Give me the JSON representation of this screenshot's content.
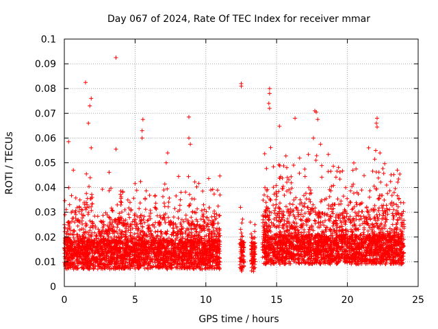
{
  "chart_data": {
    "type": "scatter",
    "title": "Day 067 of 2024, Rate Of TEC Index for receiver mmar",
    "xlabel": "GPS time / hours",
    "ylabel": "ROTI / TECUs",
    "xlim": [
      0,
      25
    ],
    "ylim": [
      0,
      0.1
    ],
    "x_ticks": [
      "0",
      "5",
      "10",
      "15",
      "20",
      "25"
    ],
    "y_ticks": [
      "0",
      "0.01",
      "0.02",
      "0.03",
      "0.04",
      "0.05",
      "0.06",
      "0.07",
      "0.08",
      "0.09",
      "0.1"
    ],
    "grid": true,
    "marker": "+",
    "color": "#ff0000",
    "data_segments": [
      {
        "x_start": 0.0,
        "x_end": 11.0,
        "y_base": 0.013,
        "y_spread": 0.02
      },
      {
        "x_start": 12.4,
        "x_end": 12.7,
        "y_base": 0.012,
        "y_spread": 0.008
      },
      {
        "x_start": 13.2,
        "x_end": 13.5,
        "y_base": 0.012,
        "y_spread": 0.01
      },
      {
        "x_start": 14.0,
        "x_end": 24.0,
        "y_base": 0.015,
        "y_spread": 0.025
      }
    ],
    "outliers": [
      {
        "x": 3.65,
        "y": 0.0925
      },
      {
        "x": 1.5,
        "y": 0.0825
      },
      {
        "x": 12.5,
        "y": 0.082
      },
      {
        "x": 12.5,
        "y": 0.081
      },
      {
        "x": 14.5,
        "y": 0.08
      },
      {
        "x": 14.5,
        "y": 0.078
      },
      {
        "x": 14.45,
        "y": 0.074
      },
      {
        "x": 14.5,
        "y": 0.072
      },
      {
        "x": 1.9,
        "y": 0.076
      },
      {
        "x": 1.8,
        "y": 0.073
      },
      {
        "x": 1.7,
        "y": 0.066
      },
      {
        "x": 17.7,
        "y": 0.071
      },
      {
        "x": 17.8,
        "y": 0.0705
      },
      {
        "x": 22.1,
        "y": 0.068
      },
      {
        "x": 22.05,
        "y": 0.066
      },
      {
        "x": 22.1,
        "y": 0.0645
      },
      {
        "x": 16.3,
        "y": 0.068
      },
      {
        "x": 17.9,
        "y": 0.0675
      },
      {
        "x": 5.55,
        "y": 0.0675
      },
      {
        "x": 5.5,
        "y": 0.063
      },
      {
        "x": 8.8,
        "y": 0.0685
      },
      {
        "x": 15.2,
        "y": 0.0648
      },
      {
        "x": 0.3,
        "y": 0.0585
      },
      {
        "x": 5.5,
        "y": 0.06
      },
      {
        "x": 8.8,
        "y": 0.06
      },
      {
        "x": 8.9,
        "y": 0.0575
      },
      {
        "x": 17.6,
        "y": 0.06
      },
      {
        "x": 18.1,
        "y": 0.0575
      },
      {
        "x": 21.5,
        "y": 0.056
      },
      {
        "x": 22.0,
        "y": 0.055
      },
      {
        "x": 22.3,
        "y": 0.054
      },
      {
        "x": 3.65,
        "y": 0.0555
      },
      {
        "x": 1.9,
        "y": 0.056
      },
      {
        "x": 7.3,
        "y": 0.054
      },
      {
        "x": 7.2,
        "y": 0.05
      },
      {
        "x": 11.0,
        "y": 0.037
      },
      {
        "x": 12.45,
        "y": 0.032
      },
      {
        "x": 12.45,
        "y": 0.019
      },
      {
        "x": 13.15,
        "y": 0.026
      }
    ]
  }
}
